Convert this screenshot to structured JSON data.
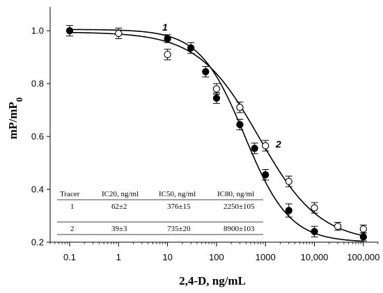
{
  "chart_data": {
    "type": "scatter",
    "xlabel": "2,4-D, ng/mL",
    "ylabel_main": "mP/mP",
    "ylabel_sub": "0",
    "x_scale": "log",
    "xlim": [
      0.04,
      200000
    ],
    "ylim": [
      0.2,
      1.09
    ],
    "x_ticks": [
      {
        "value": 0.1,
        "label": "0.1"
      },
      {
        "value": 1,
        "label": "1"
      },
      {
        "value": 10,
        "label": "10"
      },
      {
        "value": 100,
        "label": "100"
      },
      {
        "value": 1000,
        "label": "1000"
      },
      {
        "value": 10000,
        "label": "10,000"
      },
      {
        "value": 100000,
        "label": "100,000"
      }
    ],
    "y_ticks": [
      {
        "value": 1.0,
        "label": "1.0"
      },
      {
        "value": 0.8,
        "label": "0.8"
      },
      {
        "value": 0.6,
        "label": "0.6"
      },
      {
        "value": 0.4,
        "label": "0.4"
      },
      {
        "value": 0.2,
        "label": "0.2"
      }
    ],
    "series": [
      {
        "name": "1",
        "marker": "filled-circle",
        "color": "#000000",
        "x": [
          0.1,
          10,
          30,
          60,
          100,
          300,
          600,
          1000,
          3000,
          10000,
          100000
        ],
        "y": [
          1.0,
          0.97,
          0.935,
          0.845,
          0.745,
          0.645,
          0.555,
          0.455,
          0.32,
          0.24,
          0.22
        ],
        "err": [
          0.02,
          0.015,
          0.02,
          0.02,
          0.02,
          0.02,
          0.02,
          0.02,
          0.025,
          0.02,
          0.015
        ],
        "fit": {
          "top": 1.005,
          "bottom": 0.2,
          "ic50": 376,
          "slope": 0.95
        }
      },
      {
        "name": "2",
        "marker": "open-circle",
        "color": "#000000",
        "x": [
          1,
          10,
          100,
          300,
          1000,
          3000,
          10000,
          30000,
          100000
        ],
        "y": [
          0.99,
          0.91,
          0.78,
          0.71,
          0.565,
          0.43,
          0.33,
          0.26,
          0.25
        ],
        "err": [
          0.02,
          0.02,
          0.02,
          0.02,
          0.02,
          0.02,
          0.02,
          0.015,
          0.015
        ],
        "fit": {
          "top": 0.995,
          "bottom": 0.2,
          "ic50": 735,
          "slope": 0.7
        }
      }
    ],
    "annotations": [
      {
        "text": "1",
        "series": "1"
      },
      {
        "text": "2",
        "series": "2"
      }
    ]
  },
  "table": {
    "headers": [
      "Tracer",
      "IC20, ng/ml",
      "IC50, ng/ml",
      "IC80, ng/ml"
    ],
    "rows": [
      [
        "1",
        "62±2",
        "376±15",
        "2250±105"
      ],
      [
        "2",
        "39±3",
        "735±20",
        "8900±103"
      ]
    ]
  }
}
